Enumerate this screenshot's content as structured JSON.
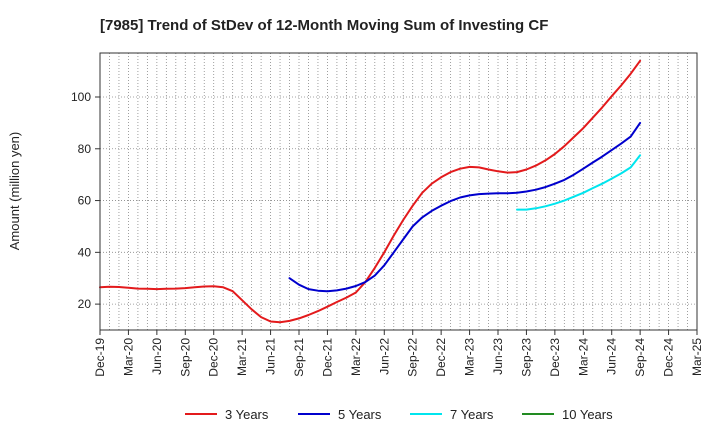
{
  "chart_data": {
    "type": "line",
    "title": "[7985]  Trend of StDev of 12-Month Moving Sum of Investing CF",
    "xlabel": "",
    "ylabel": "Amount (million yen)",
    "x_ticks": [
      "Dec-19",
      "Mar-20",
      "Jun-20",
      "Sep-20",
      "Dec-20",
      "Mar-21",
      "Jun-21",
      "Sep-21",
      "Dec-21",
      "Mar-22",
      "Jun-22",
      "Sep-22",
      "Dec-22",
      "Mar-23",
      "Jun-23",
      "Sep-23",
      "Dec-23",
      "Mar-24",
      "Jun-24",
      "Sep-24",
      "Dec-24",
      "Mar-25"
    ],
    "y_ticks": [
      20,
      40,
      60,
      80,
      100
    ],
    "ylim": [
      10,
      117
    ],
    "grid": true,
    "legend_position": "bottom",
    "series": [
      {
        "name": "3 Years",
        "color": "#e31a1c",
        "x": [
          "Dec-19",
          "Jan-20",
          "Feb-20",
          "Mar-20",
          "Apr-20",
          "May-20",
          "Jun-20",
          "Jul-20",
          "Aug-20",
          "Sep-20",
          "Oct-20",
          "Nov-20",
          "Dec-20",
          "Jan-21",
          "Feb-21",
          "Mar-21",
          "Apr-21",
          "May-21",
          "Jun-21",
          "Jul-21",
          "Aug-21",
          "Sep-21",
          "Oct-21",
          "Nov-21",
          "Dec-21",
          "Jan-22",
          "Feb-22",
          "Mar-22",
          "Apr-22",
          "May-22",
          "Jun-22",
          "Jul-22",
          "Aug-22",
          "Sep-22",
          "Oct-22",
          "Nov-22",
          "Dec-22",
          "Jan-23",
          "Feb-23",
          "Mar-23",
          "Apr-23",
          "May-23",
          "Jun-23",
          "Jul-23",
          "Aug-23",
          "Sep-23",
          "Oct-23",
          "Nov-23",
          "Dec-23",
          "Jan-24",
          "Feb-24",
          "Mar-24",
          "Apr-24",
          "May-24",
          "Jun-24",
          "Jul-24",
          "Aug-24",
          "Sep-24"
        ],
        "values": [
          26.5,
          26.7,
          26.6,
          26.3,
          26.0,
          25.9,
          25.8,
          25.9,
          26.0,
          26.2,
          26.5,
          26.8,
          26.9,
          26.5,
          25.0,
          21.5,
          18.0,
          15.0,
          13.3,
          13.0,
          13.5,
          14.5,
          15.8,
          17.3,
          19.0,
          20.8,
          22.5,
          24.5,
          28.5,
          34.0,
          40.0,
          46.5,
          52.5,
          58.0,
          63.0,
          66.5,
          69.0,
          71.0,
          72.3,
          73.0,
          72.8,
          72.0,
          71.3,
          70.8,
          71.0,
          72.0,
          73.5,
          75.5,
          78.0,
          81.0,
          84.5,
          88.0,
          92.0,
          96.0,
          100.3,
          104.5,
          109.0,
          114.0
        ]
      },
      {
        "name": "5 Years",
        "color": "#0000cd",
        "x": [
          "Aug-21",
          "Sep-21",
          "Oct-21",
          "Nov-21",
          "Dec-21",
          "Jan-22",
          "Feb-22",
          "Mar-22",
          "Apr-22",
          "May-22",
          "Jun-22",
          "Jul-22",
          "Aug-22",
          "Sep-22",
          "Oct-22",
          "Nov-22",
          "Dec-22",
          "Jan-23",
          "Feb-23",
          "Mar-23",
          "Apr-23",
          "May-23",
          "Jun-23",
          "Jul-23",
          "Aug-23",
          "Sep-23",
          "Oct-23",
          "Nov-23",
          "Dec-23",
          "Jan-24",
          "Feb-24",
          "Mar-24",
          "Apr-24",
          "May-24",
          "Jun-24",
          "Jul-24",
          "Aug-24",
          "Sep-24"
        ],
        "values": [
          30.0,
          27.5,
          25.8,
          25.2,
          25.0,
          25.3,
          26.0,
          27.0,
          28.5,
          31.0,
          35.0,
          40.0,
          45.0,
          50.0,
          53.5,
          56.0,
          58.0,
          59.8,
          61.2,
          62.0,
          62.5,
          62.7,
          62.8,
          62.8,
          63.0,
          63.5,
          64.2,
          65.2,
          66.5,
          68.0,
          70.0,
          72.3,
          74.7,
          77.0,
          79.5,
          82.0,
          84.7,
          90.0
        ]
      },
      {
        "name": "7 Years",
        "color": "#00e5ee",
        "x": [
          "Aug-23",
          "Sep-23",
          "Oct-23",
          "Nov-23",
          "Dec-23",
          "Jan-24",
          "Feb-24",
          "Mar-24",
          "Apr-24",
          "May-24",
          "Jun-24",
          "Jul-24",
          "Aug-24",
          "Sep-24"
        ],
        "values": [
          56.5,
          56.5,
          57.0,
          57.8,
          58.8,
          60.0,
          61.5,
          63.0,
          64.8,
          66.5,
          68.5,
          70.5,
          72.8,
          77.5
        ]
      },
      {
        "name": "10 Years",
        "color": "#228b22",
        "x": [],
        "values": []
      }
    ]
  }
}
